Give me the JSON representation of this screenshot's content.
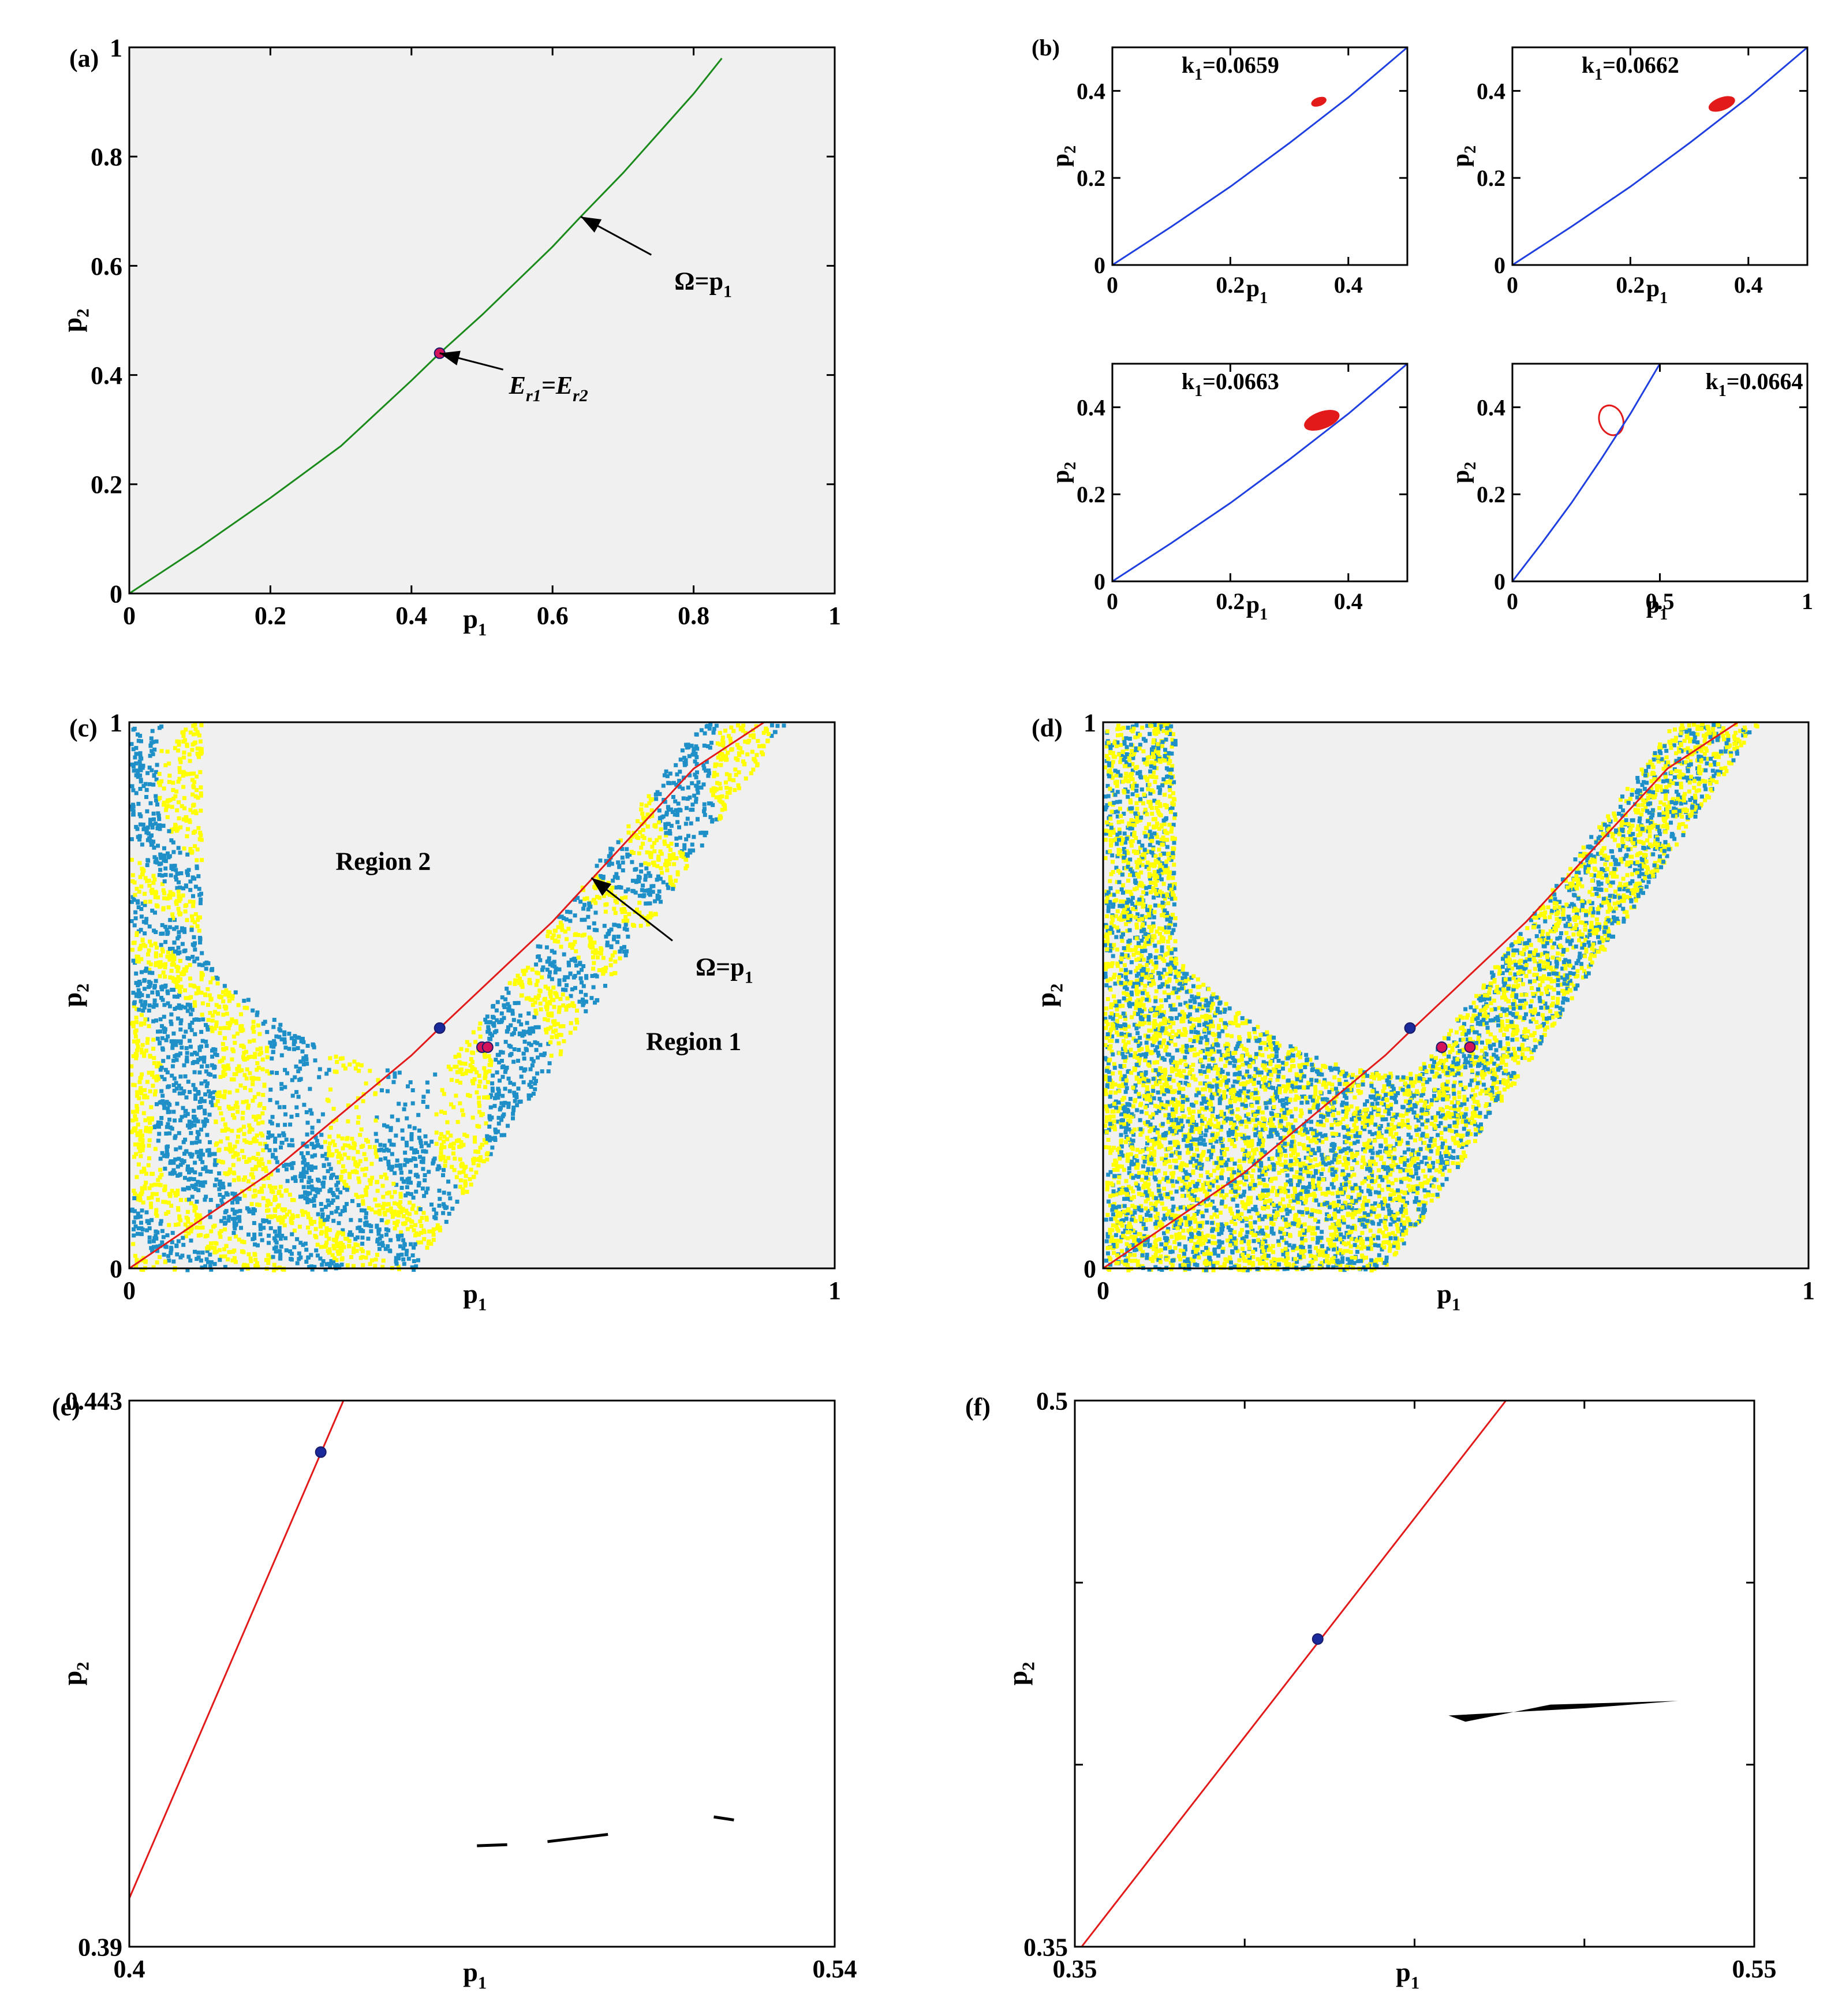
{
  "colors": {
    "panel_bg": "#f0f0f0",
    "green_curve": "#1a8a1a",
    "blue_curve": "#1f3fe0",
    "red_curve": "#e31a1a",
    "basin_yellow": "#ffff00",
    "basin_blue": "#1f8fc8",
    "point_blue": "#1a2a9a",
    "point_pink": "#d4145a",
    "black": "#000000"
  },
  "chart_data": [
    {
      "id": "a",
      "panel_label": "(a)",
      "type": "line",
      "xlabel": "p1",
      "ylabel": "p2",
      "xlim": [
        0,
        1
      ],
      "ylim": [
        0,
        1
      ],
      "xticks": [
        0,
        0.2,
        0.4,
        0.6,
        0.8,
        1
      ],
      "xtick_labels": [
        "0",
        "0.2",
        "0.4",
        "0.6",
        "0.8",
        "1"
      ],
      "yticks": [
        0,
        0.2,
        0.4,
        0.6,
        0.8,
        1
      ],
      "ytick_labels": [
        "0",
        "0.2",
        "0.4",
        "0.6",
        "0.8",
        "1"
      ],
      "series": [
        {
          "name": "Ω=p1",
          "color": "green_curve",
          "x": [
            0,
            0.1,
            0.2,
            0.3,
            0.4,
            0.44,
            0.5,
            0.6,
            0.64,
            0.7,
            0.8,
            0.84
          ],
          "y": [
            0,
            0.085,
            0.175,
            0.27,
            0.39,
            0.44,
            0.51,
            0.635,
            0.69,
            0.77,
            0.915,
            0.98
          ]
        }
      ],
      "points": [
        {
          "name": "Er1=Er2",
          "x": 0.44,
          "y": 0.44,
          "color": "point_pink"
        }
      ],
      "annotations": [
        {
          "text": "Ω=p",
          "sub": "1",
          "tip_x": 0.64,
          "tip_y": 0.69,
          "tail_x": 0.74,
          "tail_y": 0.62
        },
        {
          "text": "E",
          "sub1": "r1",
          "mid": "=E",
          "sub2": "r2",
          "tip_x": 0.44,
          "tip_y": 0.44,
          "tail_x": 0.53,
          "tail_y": 0.41
        }
      ]
    },
    {
      "id": "b1",
      "panel_label": "(b)",
      "type": "line",
      "xlabel": "p1",
      "ylabel": "p2",
      "xlim": [
        0,
        0.5
      ],
      "ylim": [
        0,
        0.5
      ],
      "xticks": [
        0,
        0.2,
        0.4
      ],
      "xtick_labels": [
        "0",
        "0.2",
        "0.4"
      ],
      "yticks": [
        0,
        0.2,
        0.4
      ],
      "ytick_labels": [
        "0",
        "0.2",
        "0.4"
      ],
      "title": "k1=0.0659",
      "series": [
        {
          "name": "Ω=p1",
          "color": "blue_curve",
          "x": [
            0,
            0.1,
            0.2,
            0.3,
            0.4,
            0.5
          ],
          "y": [
            0,
            0.088,
            0.18,
            0.28,
            0.385,
            0.5
          ]
        }
      ],
      "attractor": {
        "type": "blob",
        "cx": 0.35,
        "cy": 0.375,
        "rx": 0.012,
        "ry": 0.008,
        "color": "red_curve"
      }
    },
    {
      "id": "b2",
      "panel_label": "",
      "type": "line",
      "xlabel": "p1",
      "ylabel": "p2",
      "xlim": [
        0,
        0.5
      ],
      "ylim": [
        0,
        0.5
      ],
      "xticks": [
        0,
        0.2,
        0.4
      ],
      "xtick_labels": [
        "0",
        "0.2",
        "0.4"
      ],
      "yticks": [
        0,
        0.2,
        0.4
      ],
      "ytick_labels": [
        "0",
        "0.2",
        "0.4"
      ],
      "title": "k1=0.0662",
      "series": [
        {
          "name": "Ω=p1",
          "color": "blue_curve",
          "x": [
            0,
            0.1,
            0.2,
            0.3,
            0.4,
            0.5
          ],
          "y": [
            0,
            0.088,
            0.18,
            0.28,
            0.385,
            0.5
          ]
        }
      ],
      "attractor": {
        "type": "blob",
        "cx": 0.355,
        "cy": 0.37,
        "rx": 0.022,
        "ry": 0.013,
        "color": "red_curve"
      }
    },
    {
      "id": "b3",
      "panel_label": "",
      "type": "line",
      "xlabel": "p1",
      "ylabel": "p2",
      "xlim": [
        0,
        0.5
      ],
      "ylim": [
        0,
        0.5
      ],
      "xticks": [
        0,
        0.2,
        0.4
      ],
      "xtick_labels": [
        "0",
        "0.2",
        "0.4"
      ],
      "yticks": [
        0,
        0.2,
        0.4
      ],
      "ytick_labels": [
        "0",
        "0.2",
        "0.4"
      ],
      "title": "k1=0.0663",
      "series": [
        {
          "name": "Ω=p1",
          "color": "blue_curve",
          "x": [
            0,
            0.1,
            0.2,
            0.3,
            0.4,
            0.5
          ],
          "y": [
            0,
            0.088,
            0.18,
            0.28,
            0.385,
            0.5
          ]
        }
      ],
      "attractor": {
        "type": "blob",
        "cx": 0.355,
        "cy": 0.37,
        "rx": 0.03,
        "ry": 0.018,
        "color": "red_curve"
      }
    },
    {
      "id": "b4",
      "panel_label": "",
      "type": "line",
      "xlabel": "p1",
      "ylabel": "p2",
      "xlim": [
        0,
        1
      ],
      "ylim": [
        0,
        0.5
      ],
      "xticks": [
        0,
        0.5,
        1
      ],
      "xtick_labels": [
        "0",
        "0.5",
        "1"
      ],
      "yticks": [
        0,
        0.2,
        0.4
      ],
      "ytick_labels": [
        "0",
        "0.2",
        "0.4"
      ],
      "title": "k1=0.0664",
      "series": [
        {
          "name": "Ω=p1",
          "color": "blue_curve",
          "x": [
            0,
            0.1,
            0.2,
            0.3,
            0.4,
            0.5
          ],
          "y": [
            0,
            0.088,
            0.18,
            0.28,
            0.385,
            0.5
          ]
        }
      ],
      "attractor": {
        "type": "ring",
        "cx": 0.335,
        "cy": 0.37,
        "rx": 0.04,
        "ry": 0.035,
        "color": "red_curve"
      }
    },
    {
      "id": "c",
      "panel_label": "(c)",
      "type": "scatter",
      "xlabel": "p1",
      "ylabel": "p2",
      "xlim": [
        0,
        1
      ],
      "ylim": [
        0,
        1
      ],
      "xticks": [
        0,
        1
      ],
      "xtick_labels": [
        "0",
        "1"
      ],
      "yticks": [
        0,
        1
      ],
      "ytick_labels": [
        "0",
        "1"
      ],
      "region_labels": [
        "Region 2",
        "Region 1"
      ],
      "series": [
        {
          "name": "Ω=p1",
          "color": "red_curve",
          "x": [
            0,
            0.2,
            0.4,
            0.44,
            0.6,
            0.8,
            0.9
          ],
          "y": [
            0,
            0.175,
            0.39,
            0.44,
            0.635,
            0.915,
            1
          ]
        }
      ],
      "points": [
        {
          "x": 0.44,
          "y": 0.44,
          "color": "point_blue"
        },
        {
          "x": 0.5,
          "y": 0.405,
          "color": "point_pink"
        },
        {
          "x": 0.508,
          "y": 0.405,
          "color": "point_pink"
        }
      ],
      "annotations": [
        {
          "text": "Ω=p",
          "sub": "1",
          "tip_x": 0.655,
          "tip_y": 0.715,
          "tail_x": 0.77,
          "tail_y": 0.6
        }
      ]
    },
    {
      "id": "d",
      "panel_label": "(d)",
      "type": "scatter",
      "xlabel": "p1",
      "ylabel": "p2",
      "xlim": [
        0,
        1
      ],
      "ylim": [
        0,
        1
      ],
      "xticks": [
        0,
        1
      ],
      "xtick_labels": [
        "0",
        "1"
      ],
      "yticks": [
        0,
        1
      ],
      "ytick_labels": [
        "0",
        "1"
      ],
      "series": [
        {
          "name": "Ω=p1",
          "color": "red_curve",
          "x": [
            0,
            0.2,
            0.4,
            0.44,
            0.6,
            0.8,
            0.9
          ],
          "y": [
            0,
            0.175,
            0.39,
            0.44,
            0.635,
            0.915,
            1
          ]
        }
      ],
      "points": [
        {
          "x": 0.435,
          "y": 0.44,
          "color": "point_blue"
        },
        {
          "x": 0.48,
          "y": 0.405,
          "color": "point_pink"
        },
        {
          "x": 0.52,
          "y": 0.405,
          "color": "point_pink"
        }
      ]
    },
    {
      "id": "e",
      "panel_label": "(e)",
      "type": "scatter",
      "xlabel": "p1",
      "ylabel": "p2",
      "xlim": [
        0.4,
        0.54
      ],
      "ylim": [
        0.39,
        0.443
      ],
      "xticks": [
        0.4,
        0.54
      ],
      "xtick_labels": [
        "0.4",
        "0.54"
      ],
      "yticks": [
        0.39,
        0.443
      ],
      "ytick_labels": [
        "0.39",
        "0.443"
      ],
      "series": [
        {
          "name": "Ω=p1",
          "color": "red_curve",
          "x": [
            0.4,
            0.4425
          ],
          "y": [
            0.3947,
            0.443
          ]
        }
      ],
      "points": [
        {
          "x": 0.438,
          "y": 0.438,
          "color": "point_blue"
        }
      ],
      "fragments": [
        {
          "x": [
            0.469,
            0.475
          ],
          "y": [
            0.3998,
            0.3999
          ]
        },
        {
          "x": [
            0.483,
            0.495
          ],
          "y": [
            0.4002,
            0.4009
          ]
        },
        {
          "x": [
            0.516,
            0.52
          ],
          "y": [
            0.4026,
            0.4023
          ]
        }
      ]
    },
    {
      "id": "f",
      "panel_label": "(f)",
      "type": "scatter",
      "xlabel": "p1",
      "ylabel": "p2",
      "xlim": [
        0.35,
        0.55
      ],
      "ylim": [
        0.35,
        0.5
      ],
      "xticks": [
        0.35,
        0.4,
        0.45,
        0.5,
        0.55
      ],
      "xtick_labels": [
        "0.35",
        "",
        "",
        "",
        "0.55"
      ],
      "yticks": [
        0.35,
        0.4,
        0.45,
        0.5
      ],
      "ytick_labels": [
        "0.35",
        "",
        "",
        "0.5"
      ],
      "series": [
        {
          "name": "Ω=p1",
          "color": "red_curve",
          "x": [
            0.352,
            0.4769
          ],
          "y": [
            0.35,
            0.5
          ]
        }
      ],
      "points": [
        {
          "x": 0.4215,
          "y": 0.4345,
          "color": "point_blue"
        }
      ],
      "attractor": {
        "type": "wedge",
        "x": [
          0.46,
          0.5,
          0.5275,
          0.49,
          0.465
        ],
        "y": [
          0.4135,
          0.4155,
          0.4175,
          0.4165,
          0.4118
        ],
        "color": "black"
      }
    }
  ]
}
